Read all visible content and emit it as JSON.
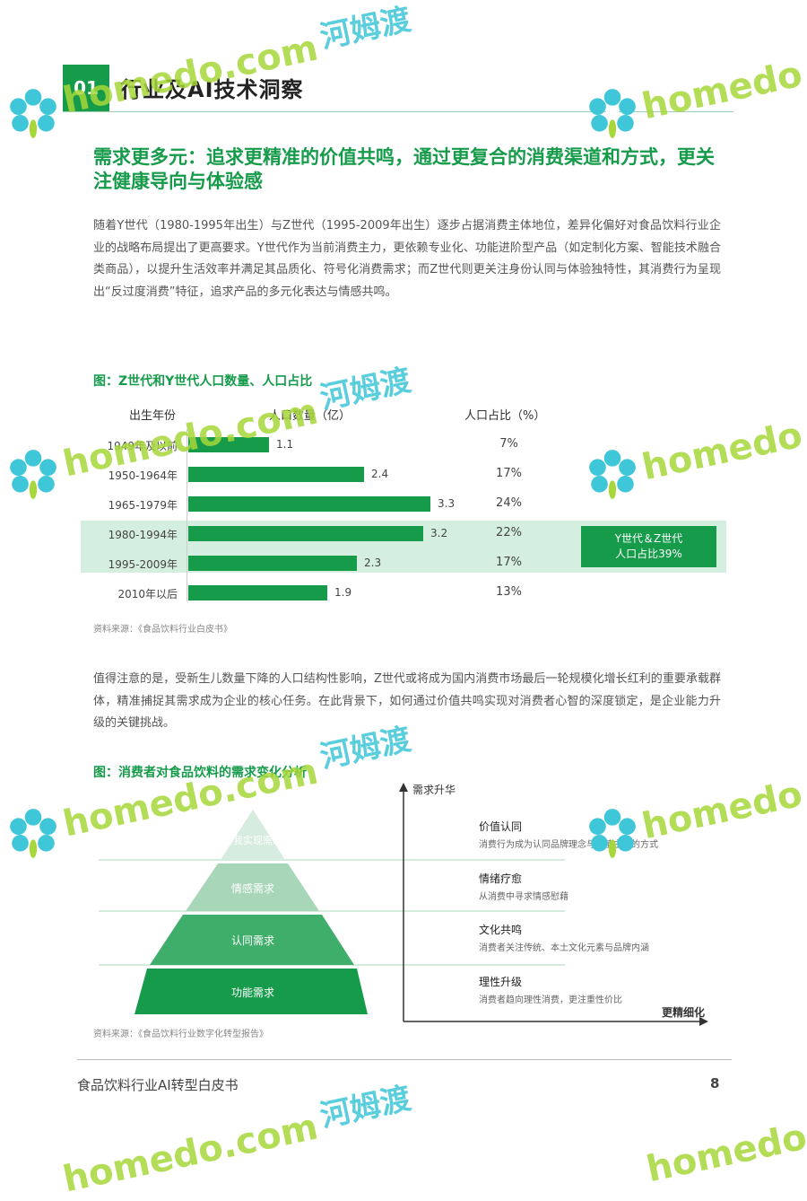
{
  "header": {
    "badge": "01",
    "title": "行业及AI技术洞察"
  },
  "heading": "需求更多元：追求更精准的价值共鸣，通过更复合的消费渠道和方式，更关注健康导向与体验感",
  "paragraph1": "随着Y世代（1980-1995年出生）与Z世代（1995-2009年出生）逐步占据消费主体地位，差异化偏好对食品饮料行业企业的战略布局提出了更高要求。Y世代作为当前消费主力，更依赖专业化、功能进阶型产品（如定制化方案、智能技术融合类商品），以提升生活效率并满足其品质化、符号化消费需求；而Z世代则更关注身份认同与体验独特性，其消费行为呈现出“反过度消费”特征，追求产品的多元化表达与情感共鸣。",
  "figure1": {
    "title": "图：Z世代和Y世代人口数量、人口占比",
    "col_year": "出生年份",
    "col_pop": "人口数量（亿）",
    "col_pct": "人口占比（%）",
    "callout_line1": "Y世代＆Z世代",
    "callout_line2": "人口占比39%",
    "source": "资料来源：《食品饮料行业白皮书》"
  },
  "chart_data": {
    "type": "bar",
    "orientation": "horizontal",
    "categories": [
      "1949年及以前",
      "1950-1964年",
      "1965-1979年",
      "1980-1994年",
      "1995-2009年",
      "2010年以后"
    ],
    "values": [
      1.1,
      2.4,
      3.3,
      3.2,
      2.3,
      1.9
    ],
    "values_label": [
      "1.1",
      "2.4",
      "3.3",
      "3.2",
      "2.3",
      "1.9"
    ],
    "percents": [
      "7%",
      "17%",
      "24%",
      "22%",
      "17%",
      "13%"
    ],
    "highlight_rows": [
      3,
      4
    ],
    "xlim": [
      0,
      3.3
    ],
    "color": "#169b4b"
  },
  "paragraph2": "值得注意的是，受新生儿数量下降的人口结构性影响，Z世代或将成为国内消费市场最后一轮规模化增长红利的重要承载群体，精准捕捉其需求成为企业的核心任务。在此背景下，如何通过价值共鸣实现对消费者心智的深度锁定，是企业能力升级的关键挑战。",
  "figure2": {
    "title": "图：消费者对食品饮料的需求变化分析",
    "y_axis": "需求升华",
    "x_axis": "更精细化",
    "levels": [
      "自我实现需求",
      "情感需求",
      "认同需求",
      "功能需求"
    ],
    "descriptions": [
      {
        "title": "价值认同",
        "desc": "消费行为成为认同品牌理念与价值主张的方式"
      },
      {
        "title": "情绪疗愈",
        "desc": "从消费中寻求情感慰藉"
      },
      {
        "title": "文化共鸣",
        "desc": "消费者关注传统、本土文化元素与品牌内涵"
      },
      {
        "title": "理性升级",
        "desc": "消费者趋向理性消费，更注重性价比"
      }
    ],
    "source": "资料来源：《食品饮料行业数字化转型报告》"
  },
  "footer": {
    "left": "食品饮料行业AI转型白皮书",
    "page": "8"
  },
  "watermark": {
    "brand": "homedo",
    "site": "homedo.com",
    "cn": "河姆渡"
  }
}
